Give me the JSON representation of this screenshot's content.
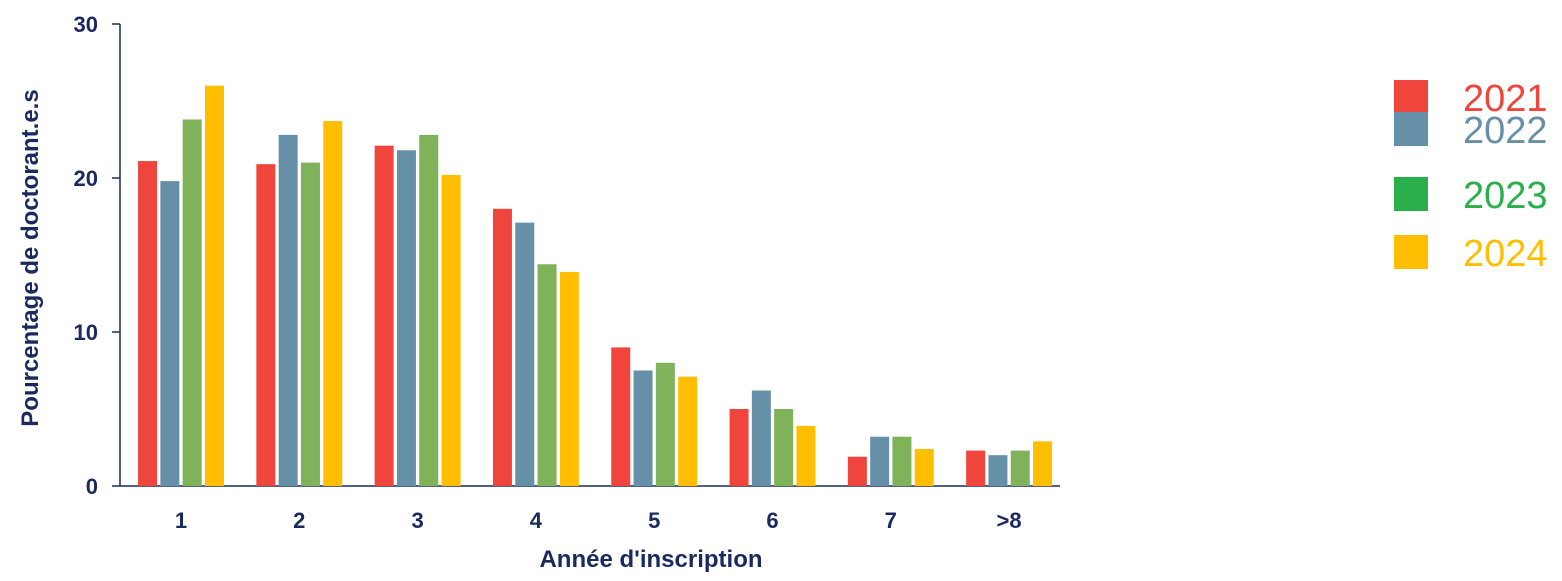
{
  "chart_data": {
    "type": "bar",
    "title": "",
    "xlabel": "Année d'inscription",
    "ylabel": "Pourcentage de doctorant.e.s",
    "ylim": [
      0,
      30
    ],
    "yticks": [
      0,
      10,
      20,
      30
    ],
    "categories": [
      "1",
      "2",
      "3",
      "4",
      "5",
      "6",
      "7",
      ">8"
    ],
    "series": [
      {
        "name": "2021",
        "color": "#f0453d",
        "values": [
          21.1,
          20.9,
          22.1,
          18.0,
          9.0,
          5.0,
          1.9,
          2.3
        ]
      },
      {
        "name": "2022",
        "color": "#6690a8",
        "values": [
          19.8,
          22.8,
          21.8,
          17.1,
          7.5,
          6.2,
          3.2,
          2.0
        ]
      },
      {
        "name": "2023",
        "color": "#80b25a",
        "values": [
          23.8,
          21.0,
          22.8,
          14.4,
          8.0,
          5.0,
          3.2,
          2.3
        ]
      },
      {
        "name": "2024",
        "color": "#ffbf00",
        "values": [
          26.0,
          23.7,
          20.2,
          13.9,
          7.1,
          3.9,
          2.4,
          2.9
        ]
      }
    ],
    "legend": {
      "position": "right",
      "items": [
        {
          "label": "2021",
          "swatch_color": "#f0453d",
          "text_color": "#f0453d"
        },
        {
          "label": "2022",
          "swatch_color": "#6690a8",
          "text_color": "#6690a8"
        },
        {
          "label": "2023",
          "swatch_color": "#2ab04a",
          "text_color": "#2ab04a"
        },
        {
          "label": "2024",
          "swatch_color": "#ffbf00",
          "text_color": "#ffbf00"
        }
      ]
    },
    "grid": false,
    "axis_color": "#1b2a5e"
  }
}
